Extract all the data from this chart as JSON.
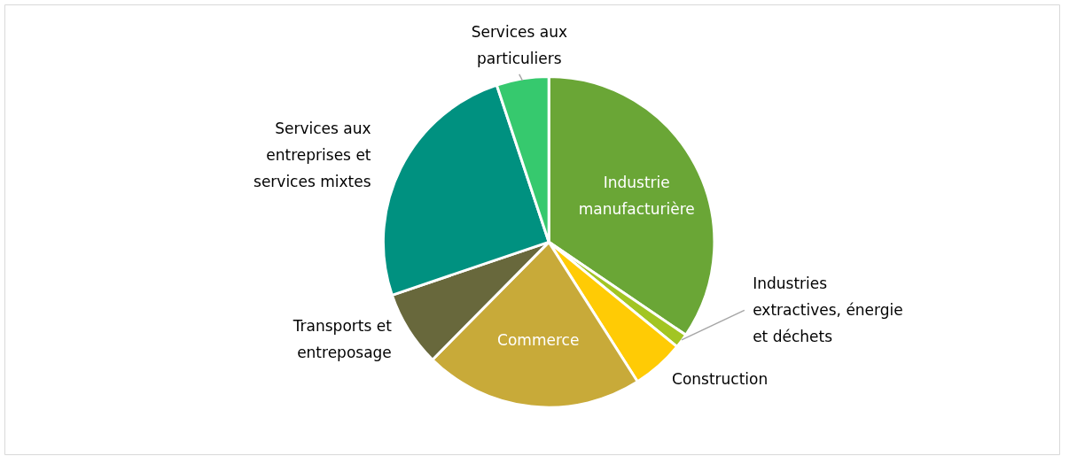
{
  "chart_data": {
    "type": "pie",
    "categories": [
      "Industrie manufacturière",
      "Industries extractives, énergie et déchets",
      "Construction",
      "Commerce",
      "Transports et entreposage",
      "Services aux entreprises et services mixtes",
      "Services aux particuliers"
    ],
    "values": [
      34.5,
      1.4,
      5.1,
      21.4,
      7.4,
      25.1,
      5.1
    ],
    "colors": [
      "#6aa636",
      "#a2c523",
      "#ffcb05",
      "#c8aa39",
      "#68683c",
      "#009180",
      "#36c96e"
    ]
  }
}
